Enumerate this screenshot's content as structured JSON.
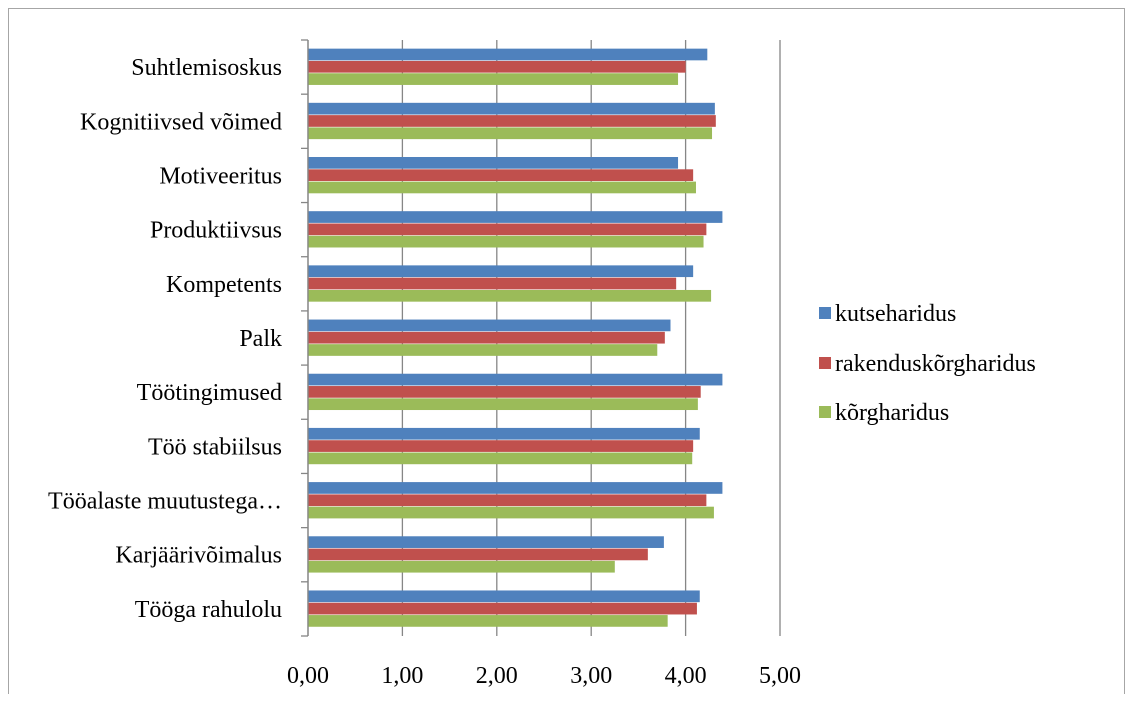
{
  "chart_data": {
    "type": "bar",
    "orientation": "horizontal",
    "categories": [
      "Suhtlemisoskus",
      "Kognitiivsed võimed",
      "Motiveeritus",
      "Produktiivsus",
      "Kompetents",
      "Palk",
      "Töötingimused",
      "Töö stabiilsus",
      "Tööalaste muutustega…",
      "Karjäärivõimalus",
      "Tööga rahulolu"
    ],
    "series": [
      {
        "name": "kutseharidus",
        "color": "#4f81bd",
        "values": [
          4.23,
          4.31,
          3.92,
          4.39,
          4.08,
          3.84,
          4.39,
          4.15,
          4.39,
          3.77,
          4.15
        ]
      },
      {
        "name": "rakenduskõrgharidus",
        "color": "#c0504d",
        "values": [
          4.0,
          4.32,
          4.08,
          4.22,
          3.9,
          3.78,
          4.16,
          4.08,
          4.22,
          3.6,
          4.12
        ]
      },
      {
        "name": "kõrgharidus",
        "color": "#9bbb59",
        "values": [
          3.92,
          4.28,
          4.11,
          4.19,
          4.27,
          3.7,
          4.13,
          4.07,
          4.3,
          3.25,
          3.81
        ]
      }
    ],
    "xlim": [
      0,
      5
    ],
    "x_ticks": [
      "0,00",
      "1,00",
      "2,00",
      "3,00",
      "4,00",
      "5,00"
    ],
    "grid": "vertical",
    "legend": "right",
    "title": "",
    "xlabel": "",
    "ylabel": ""
  }
}
